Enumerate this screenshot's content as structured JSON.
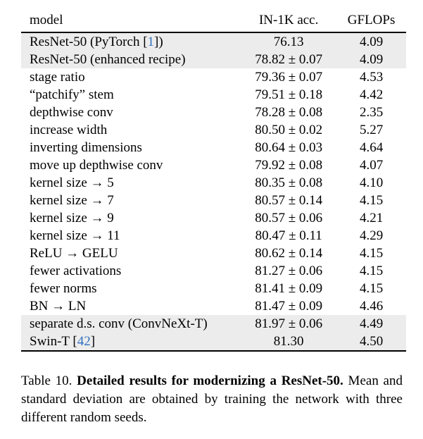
{
  "table": {
    "columns": [
      "model",
      "IN-1K acc.",
      "GFLOPs"
    ],
    "rows": [
      {
        "pre": "ResNet-50 (PyTorch [",
        "cite": "1",
        "post": "])",
        "acc": "76.13",
        "gflops": "4.09",
        "shaded": true
      },
      {
        "pre": "ResNet-50 (enhanced recipe)",
        "cite": "",
        "post": "",
        "acc": "78.82 ± 0.07",
        "gflops": "4.09",
        "shaded": true
      },
      {
        "pre": "stage ratio",
        "cite": "",
        "post": "",
        "acc": "79.36 ± 0.07",
        "gflops": "4.53",
        "shaded": false
      },
      {
        "pre": "“patchify” stem",
        "cite": "",
        "post": "",
        "acc": "79.51 ± 0.18",
        "gflops": "4.42",
        "shaded": false
      },
      {
        "pre": "depthwise conv",
        "cite": "",
        "post": "",
        "acc": "78.28 ± 0.08",
        "gflops": "2.35",
        "shaded": false
      },
      {
        "pre": "increase width",
        "cite": "",
        "post": "",
        "acc": "80.50 ± 0.02",
        "gflops": "5.27",
        "shaded": false
      },
      {
        "pre": "inverting dimensions",
        "cite": "",
        "post": "",
        "acc": "80.64 ± 0.03",
        "gflops": "4.64",
        "shaded": false
      },
      {
        "pre": "move up depthwise conv",
        "cite": "",
        "post": "",
        "acc": "79.92 ± 0.08",
        "gflops": "4.07",
        "shaded": false
      },
      {
        "pre": "kernel size → 5",
        "cite": "",
        "post": "",
        "acc": "80.35 ± 0.08",
        "gflops": "4.10",
        "shaded": false
      },
      {
        "pre": "kernel size → 7",
        "cite": "",
        "post": "",
        "acc": "80.57 ± 0.14",
        "gflops": "4.15",
        "shaded": false
      },
      {
        "pre": "kernel size → 9",
        "cite": "",
        "post": "",
        "acc": "80.57 ± 0.06",
        "gflops": "4.21",
        "shaded": false
      },
      {
        "pre": "kernel size → 11",
        "cite": "",
        "post": "",
        "acc": "80.47 ± 0.11",
        "gflops": "4.29",
        "shaded": false
      },
      {
        "pre": "ReLU → GELU",
        "cite": "",
        "post": "",
        "acc": "80.62 ± 0.14",
        "gflops": "4.15",
        "shaded": false
      },
      {
        "pre": "fewer activations",
        "cite": "",
        "post": "",
        "acc": "81.27 ± 0.06",
        "gflops": "4.15",
        "shaded": false
      },
      {
        "pre": "fewer norms",
        "cite": "",
        "post": "",
        "acc": "81.41 ± 0.09",
        "gflops": "4.15",
        "shaded": false
      },
      {
        "pre": "BN → LN",
        "cite": "",
        "post": "",
        "acc": "81.47 ± 0.09",
        "gflops": "4.46",
        "shaded": false
      },
      {
        "pre": "separate d.s. conv (ConvNeXt-T)",
        "cite": "",
        "post": "",
        "acc": "81.97 ± 0.06",
        "gflops": "4.49",
        "shaded": true
      },
      {
        "pre": "Swin-T [",
        "cite": "42",
        "post": "]",
        "acc": "81.30",
        "gflops": "4.50",
        "shaded": true
      }
    ]
  },
  "caption": {
    "prefix": "Table 10. ",
    "bold": "Detailed results for modernizing a ResNet-50.",
    "rest": " Mean and standard deviation are obtained by training the network with three different random seeds."
  },
  "colors": {
    "citation_blue": "#3070c0",
    "row_shading": "#ececec",
    "rule_black": "#000000"
  }
}
